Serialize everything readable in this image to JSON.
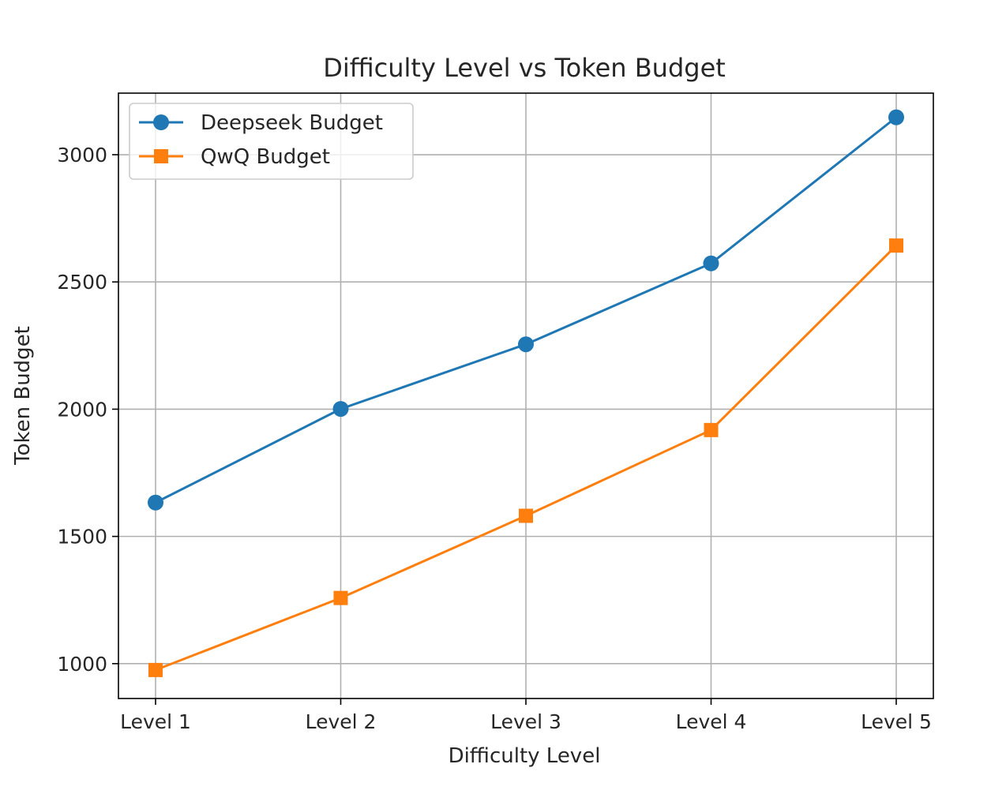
{
  "chart_data": {
    "type": "line",
    "title": "Difficulty Level vs Token Budget",
    "xlabel": "Difficulty Level",
    "ylabel": "Token Budget",
    "categories": [
      "Level 1",
      "Level 2",
      "Level 3",
      "Level 4",
      "Level 5"
    ],
    "ylim": [
      863,
      3242
    ],
    "yticks": [
      1000,
      1500,
      2000,
      2500,
      3000
    ],
    "grid": true,
    "legend_position": "top-left",
    "series": [
      {
        "name": "Deepseek Budget",
        "values": [
          1633,
          2001,
          2255,
          2573,
          3147
        ],
        "color": "#1f77b4",
        "marker": "circle"
      },
      {
        "name": "QwQ Budget",
        "values": [
          975,
          1258,
          1581,
          1918,
          2643
        ],
        "color": "#ff7f0e",
        "marker": "square"
      }
    ]
  }
}
